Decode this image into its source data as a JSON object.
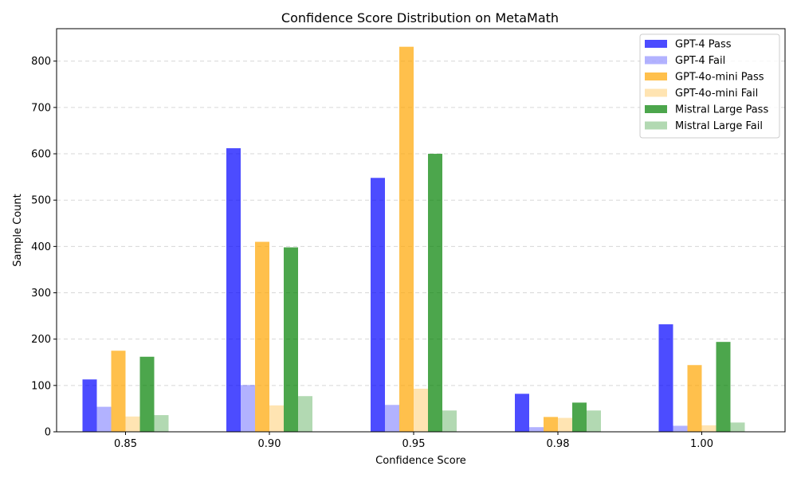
{
  "chart_data": {
    "type": "bar",
    "title": "Confidence Score Distribution on MetaMath",
    "xlabel": "Confidence Score",
    "ylabel": "Sample Count",
    "categories": [
      "0.85",
      "0.90",
      "0.95",
      "0.98",
      "1.00"
    ],
    "ylim": [
      0,
      870
    ],
    "yticks": [
      0,
      100,
      200,
      300,
      400,
      500,
      600,
      700,
      800
    ],
    "grid": "horizontal dashed",
    "legend_position": "top-right",
    "series": [
      {
        "name": "GPT-4 Pass",
        "color": "#0000FF",
        "opacity": 0.7,
        "values": [
          113,
          612,
          548,
          82,
          232
        ]
      },
      {
        "name": "GPT-4 Fail",
        "color": "#0000FF",
        "opacity": 0.3,
        "values": [
          54,
          101,
          58,
          10,
          13
        ]
      },
      {
        "name": "GPT-4o-mini Pass",
        "color": "#FFA500",
        "opacity": 0.7,
        "values": [
          175,
          410,
          831,
          32,
          144
        ]
      },
      {
        "name": "GPT-4o-mini Fail",
        "color": "#FFA500",
        "opacity": 0.3,
        "values": [
          33,
          57,
          93,
          30,
          14
        ]
      },
      {
        "name": "Mistral Large Pass",
        "color": "#008000",
        "opacity": 0.7,
        "values": [
          162,
          398,
          600,
          63,
          194
        ]
      },
      {
        "name": "Mistral Large Fail",
        "color": "#008000",
        "opacity": 0.3,
        "values": [
          36,
          77,
          46,
          46,
          20
        ]
      }
    ]
  }
}
